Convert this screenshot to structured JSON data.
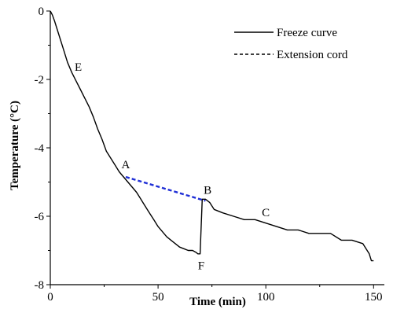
{
  "chart_data": {
    "type": "line",
    "xlabel": "Time (min)",
    "ylabel": "Temperature (°C)",
    "xlim": [
      0,
      155
    ],
    "ylim": [
      -8,
      0
    ],
    "xticks": [
      0,
      50,
      100,
      150
    ],
    "yticks": [
      0,
      -2,
      -4,
      -6,
      -8
    ],
    "grid": false,
    "legend_position": "top-right",
    "series": [
      {
        "name": "Freeze curve",
        "style": "solid",
        "color": "#000000",
        "x": [
          0,
          1,
          2,
          4,
          6,
          8,
          10,
          12,
          14,
          16,
          18,
          20,
          22,
          24,
          26,
          28,
          30,
          32,
          34,
          36,
          38,
          40,
          42,
          44,
          46,
          48,
          50,
          52,
          54,
          56,
          58,
          60,
          62,
          64,
          66,
          67.5,
          68.5,
          69.5,
          70.5,
          72,
          74,
          76,
          80,
          85,
          90,
          95,
          100,
          105,
          110,
          115,
          120,
          125,
          130,
          135,
          140,
          145,
          147,
          148,
          149,
          150
        ],
        "y": [
          0,
          -0.12,
          -0.3,
          -0.7,
          -1.1,
          -1.5,
          -1.8,
          -2.05,
          -2.3,
          -2.55,
          -2.8,
          -3.1,
          -3.45,
          -3.75,
          -4.1,
          -4.3,
          -4.5,
          -4.7,
          -4.85,
          -5.0,
          -5.15,
          -5.3,
          -5.5,
          -5.7,
          -5.9,
          -6.1,
          -6.3,
          -6.45,
          -6.6,
          -6.7,
          -6.8,
          -6.9,
          -6.95,
          -7.0,
          -7.0,
          -7.05,
          -7.1,
          -7.1,
          -5.5,
          -5.5,
          -5.6,
          -5.8,
          -5.9,
          -6.0,
          -6.1,
          -6.1,
          -6.2,
          -6.3,
          -6.4,
          -6.4,
          -6.5,
          -6.5,
          -6.5,
          -6.7,
          -6.7,
          -6.8,
          -7.0,
          -7.1,
          -7.3,
          -7.3
        ]
      },
      {
        "name": "Extension cord",
        "style": "dashed",
        "color": "#1f2fd6",
        "x": [
          35,
          72
        ],
        "y": [
          -4.85,
          -5.55
        ]
      }
    ],
    "annotations": [
      {
        "text": "E",
        "x": 13,
        "y": -1.75
      },
      {
        "text": "A",
        "x": 35,
        "y": -4.6
      },
      {
        "text": "B",
        "x": 73,
        "y": -5.35
      },
      {
        "text": "C",
        "x": 100,
        "y": -6.0
      },
      {
        "text": "F",
        "x": 70,
        "y": -7.55
      }
    ]
  }
}
